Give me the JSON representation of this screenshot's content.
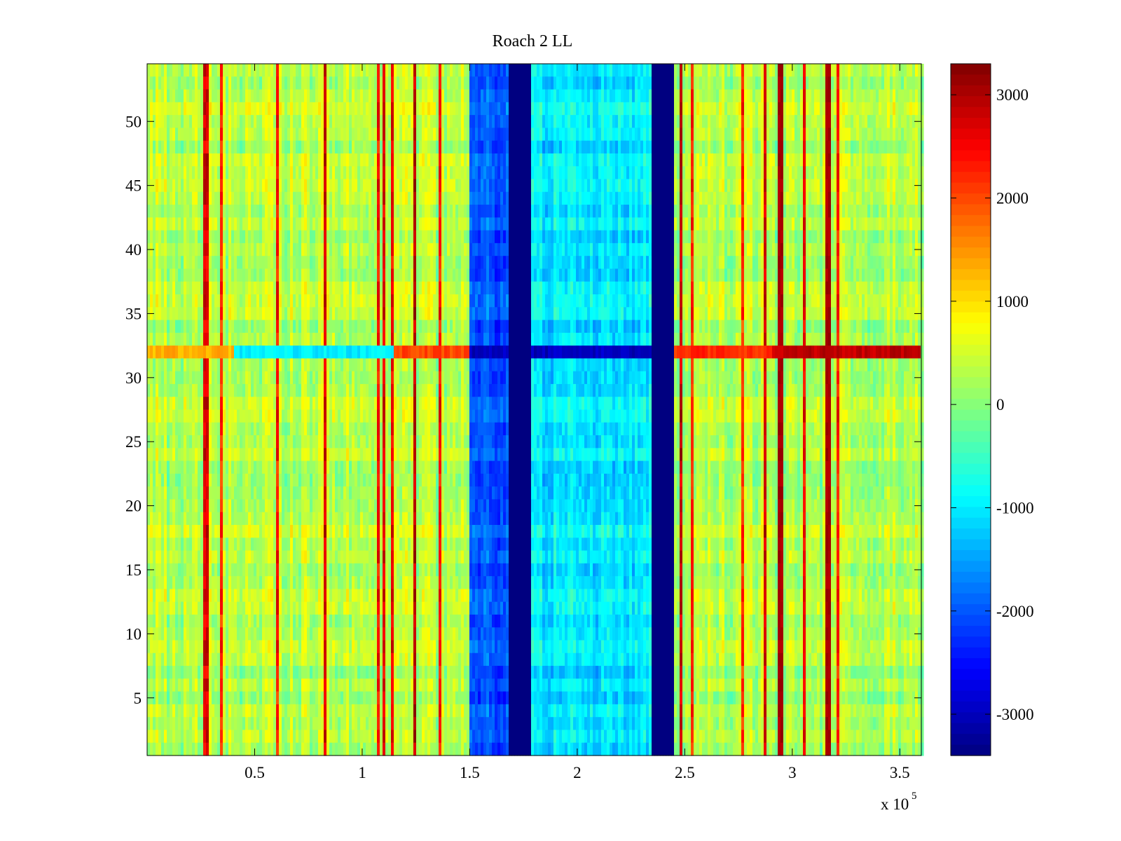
{
  "chart_data": {
    "type": "heatmap",
    "title": "Roach 2 LL",
    "xlabel": "",
    "ylabel": "",
    "x_multiplier_label": "x 10",
    "x_multiplier_exponent": "5",
    "xlim": [
      0,
      3.6
    ],
    "ylim": [
      0.5,
      54.5
    ],
    "xticks": [
      0.5,
      1,
      1.5,
      2,
      2.5,
      3,
      3.5
    ],
    "xtick_labels": [
      "0.5",
      "1",
      "1.5",
      "2",
      "2.5",
      "3",
      "3.5"
    ],
    "yticks": [
      5,
      10,
      15,
      20,
      25,
      30,
      35,
      40,
      45,
      50
    ],
    "ytick_labels": [
      "5",
      "10",
      "15",
      "20",
      "25",
      "30",
      "35",
      "40",
      "45",
      "50"
    ],
    "rows": 54,
    "colormap": "jet",
    "clim": [
      -3400,
      3300
    ],
    "colorbar": {
      "ticks": [
        3000,
        2000,
        1000,
        0,
        -1000,
        -2000,
        -3000
      ],
      "tick_labels": [
        "3000",
        "2000",
        "1000",
        "0",
        "-1000",
        "-2000",
        "-3000"
      ]
    },
    "regions": [
      {
        "x_start": 0.0,
        "x_end": 1.5,
        "typical_value": 300,
        "description_label": "background"
      },
      {
        "x_start": 1.5,
        "x_end": 1.68,
        "typical_value": -2000,
        "description_label": "low"
      },
      {
        "x_start": 1.68,
        "x_end": 1.79,
        "typical_value": -3400,
        "description_label": "saturated"
      },
      {
        "x_start": 1.79,
        "x_end": 2.34,
        "typical_value": -1000,
        "description_label": "mid-low"
      },
      {
        "x_start": 2.34,
        "x_end": 2.45,
        "typical_value": -3400,
        "description_label": "saturated"
      },
      {
        "x_start": 2.45,
        "x_end": 3.6,
        "typical_value": 300,
        "description_label": "background"
      }
    ],
    "highlight_row": {
      "row": 32,
      "segments": [
        {
          "x_start": 0.0,
          "x_end": 0.4,
          "value": 1300
        },
        {
          "x_start": 0.4,
          "x_end": 1.15,
          "value": -1000
        },
        {
          "x_start": 1.15,
          "x_end": 1.5,
          "value": 2000
        },
        {
          "x_start": 1.5,
          "x_end": 2.45,
          "value": -3000
        },
        {
          "x_start": 2.45,
          "x_end": 2.9,
          "value": 2200
        },
        {
          "x_start": 2.9,
          "x_end": 3.6,
          "value": 2900
        }
      ]
    },
    "strong_vertical_lines_x": [
      2.95,
      3.17
    ]
  }
}
